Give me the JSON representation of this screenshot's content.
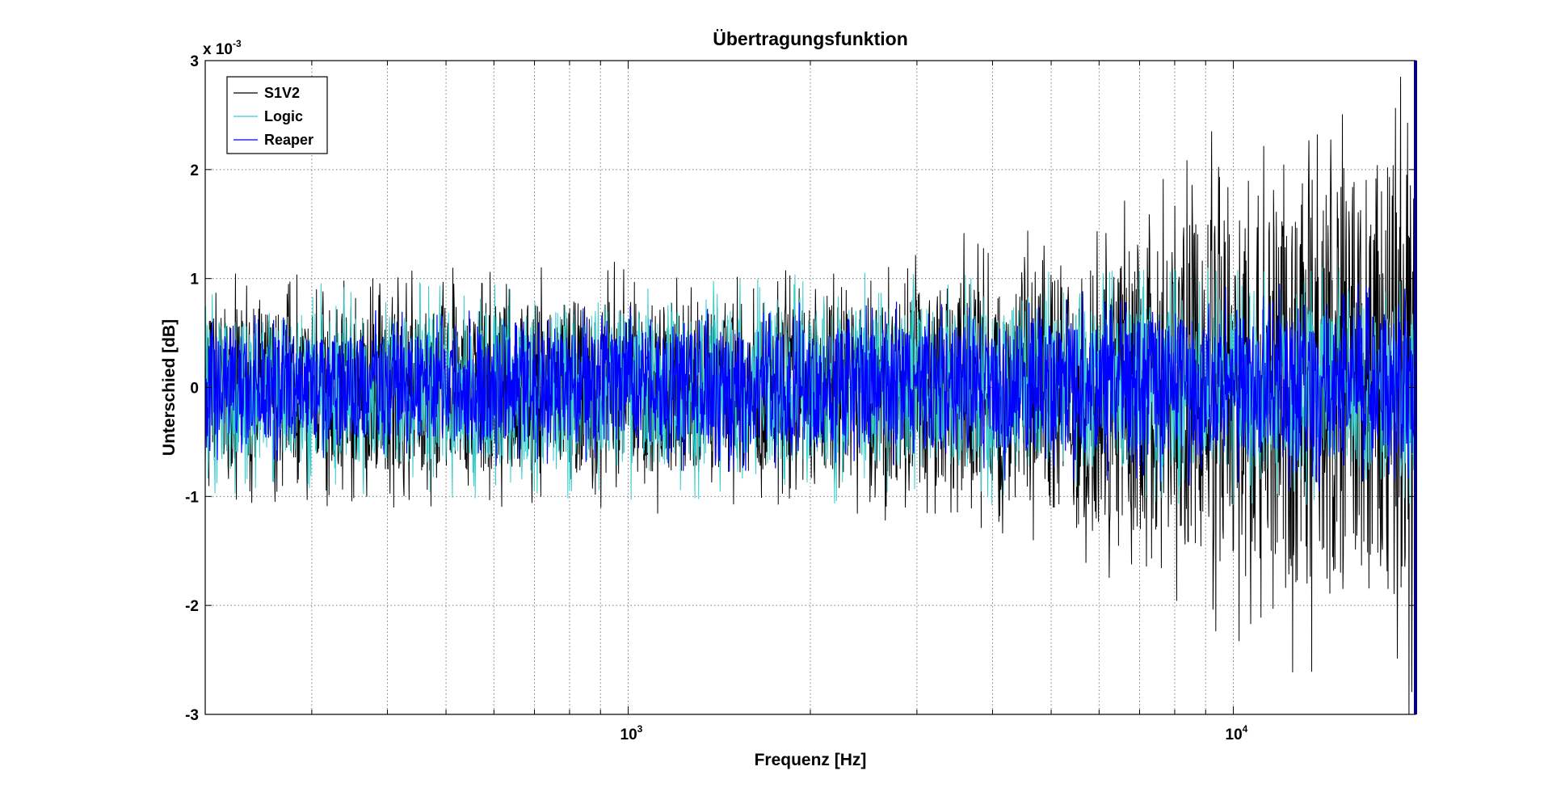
{
  "chart_data": {
    "type": "line",
    "title": "Übertragungsfunktion",
    "xlabel": "Frequenz [Hz]",
    "ylabel": "Unterschied [dB]",
    "x_scale": "log",
    "xlim": [
      200,
      20000
    ],
    "ylim": [
      -0.003,
      0.003
    ],
    "y_multiplier": "x 10",
    "y_multiplier_exponent": "-3",
    "y_ticks": [
      -3,
      -2,
      -1,
      0,
      1,
      2,
      3
    ],
    "y_tick_labels": [
      "-3",
      "-2",
      "-1",
      "0",
      "1",
      "2",
      "3"
    ],
    "x_major_ticks": [
      1000,
      10000
    ],
    "x_tick_labels": [
      {
        "base": "10",
        "exp": "3"
      },
      {
        "base": "10",
        "exp": "4"
      }
    ],
    "grid": "on (dotted, major and minor)",
    "legend": {
      "position": "top-left",
      "entries": [
        "S1V2",
        "Logic",
        "Reaper"
      ]
    },
    "series": [
      {
        "name": "S1V2",
        "color": "#000000",
        "envelope_x": [
          200,
          500,
          1000,
          2000,
          3000,
          5000,
          8000,
          10000,
          15000,
          20000
        ],
        "envelope_upper": [
          0.00085,
          0.0009,
          0.00095,
          0.0009,
          0.00105,
          0.0013,
          0.0017,
          0.002,
          0.0024,
          0.0025
        ],
        "envelope_lower": [
          -0.00085,
          -0.0009,
          -0.00095,
          -0.0009,
          -0.00105,
          -0.0013,
          -0.0017,
          -0.002,
          -0.0024,
          -0.0025
        ]
      },
      {
        "name": "Logic",
        "color": "#33cccc",
        "envelope_x": [
          200,
          20000
        ],
        "envelope_upper": [
          0.0008,
          0.0009
        ],
        "envelope_lower": [
          -0.0008,
          -0.0009
        ]
      },
      {
        "name": "Reaper",
        "color": "#0000ff",
        "envelope_x": [
          200,
          1000,
          5000,
          20000
        ],
        "envelope_upper": [
          0.00055,
          0.0006,
          0.0007,
          0.0008
        ],
        "envelope_lower": [
          -0.00055,
          -0.0006,
          -0.0007,
          -0.0008
        ]
      }
    ],
    "colors": {
      "axes": "#000000",
      "grid": "#888888",
      "right_edge_marker": "#000080"
    }
  }
}
